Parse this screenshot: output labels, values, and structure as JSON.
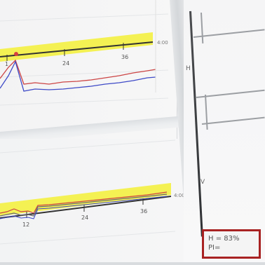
{
  "upper_chart": {
    "axis_ticks": [
      "1",
      "24",
      "36"
    ],
    "axis_end_label": "4:00",
    "highlight_color": "#f3f04a",
    "series_colors": {
      "red": "#d24848",
      "blue": "#3c46c8"
    }
  },
  "lower_chart": {
    "axis_ticks": [
      "12",
      "24",
      "36"
    ],
    "axis_end_label": "4:00",
    "highlight_color": "#f3f04a"
  },
  "scale": {
    "upper_label": "H",
    "lower_label": "V"
  },
  "status_box": {
    "line1": "H = 83%",
    "line2": "PI="
  }
}
